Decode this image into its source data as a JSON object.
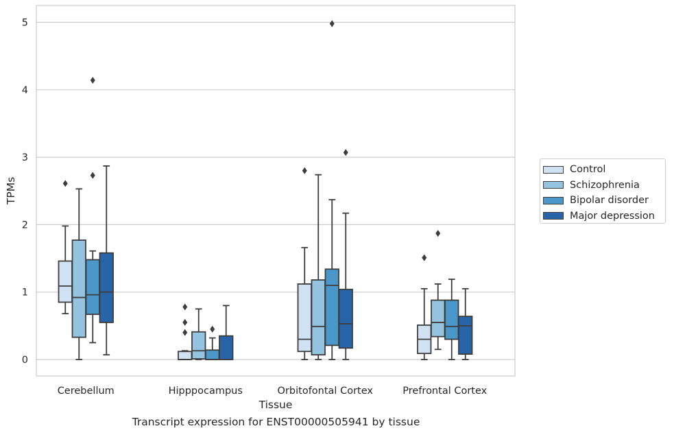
{
  "chart_data": {
    "type": "boxplot",
    "xlabel": "Tissue",
    "ylabel": "TPMs",
    "caption": "Transcript expression for ENST00000505941 by tissue",
    "ylim": [
      -0.25,
      5.23
    ],
    "yticks": [
      0,
      1,
      2,
      3,
      4,
      5
    ],
    "grid": "horizontal",
    "legend_position": "right",
    "categories": [
      "Cerebellum",
      "Hipppocampus",
      "Orbitofontal Cortex",
      "Prefrontal Cortex"
    ],
    "series": [
      {
        "name": "Control",
        "color": "#d0e1f2",
        "boxes": [
          {
            "whislo": 0.68,
            "q1": 0.85,
            "med": 1.09,
            "q3": 1.46,
            "whishi": 1.98,
            "fliers": [
              2.61
            ]
          },
          {
            "whislo": 0.0,
            "q1": 0.0,
            "med": 0.0,
            "q3": 0.12,
            "whishi": 0.13,
            "fliers": [
              0.4,
              0.55,
              0.78
            ]
          },
          {
            "whislo": 0.0,
            "q1": 0.12,
            "med": 0.3,
            "q3": 1.12,
            "whishi": 1.66,
            "fliers": [
              2.8
            ]
          },
          {
            "whislo": 0.0,
            "q1": 0.09,
            "med": 0.3,
            "q3": 0.51,
            "whishi": 1.05,
            "fliers": [
              1.51
            ]
          }
        ]
      },
      {
        "name": "Schizophrenia",
        "color": "#94c4df",
        "boxes": [
          {
            "whislo": 0.0,
            "q1": 0.33,
            "med": 0.92,
            "q3": 1.77,
            "whishi": 2.53,
            "fliers": []
          },
          {
            "whislo": 0.0,
            "q1": 0.01,
            "med": 0.13,
            "q3": 0.41,
            "whishi": 0.75,
            "fliers": []
          },
          {
            "whislo": 0.0,
            "q1": 0.07,
            "med": 0.49,
            "q3": 1.18,
            "whishi": 2.74,
            "fliers": []
          },
          {
            "whislo": 0.15,
            "q1": 0.34,
            "med": 0.55,
            "q3": 0.88,
            "whishi": 1.12,
            "fliers": [
              1.87
            ]
          }
        ]
      },
      {
        "name": "Bipolar disorder",
        "color": "#4a98c9",
        "boxes": [
          {
            "whislo": 0.25,
            "q1": 0.67,
            "med": 0.96,
            "q3": 1.48,
            "whishi": 1.61,
            "fliers": [
              2.73,
              4.14
            ]
          },
          {
            "whislo": 0.0,
            "q1": 0.0,
            "med": 0.0,
            "q3": 0.14,
            "whishi": 0.32,
            "fliers": [
              0.45
            ]
          },
          {
            "whislo": 0.0,
            "q1": 0.21,
            "med": 1.1,
            "q3": 1.34,
            "whishi": 2.37,
            "fliers": [
              4.98
            ]
          },
          {
            "whislo": 0.0,
            "q1": 0.3,
            "med": 0.49,
            "q3": 0.88,
            "whishi": 1.19,
            "fliers": []
          }
        ]
      },
      {
        "name": "Major depression",
        "color": "#2864a8",
        "boxes": [
          {
            "whislo": 0.07,
            "q1": 0.55,
            "med": 1.0,
            "q3": 1.58,
            "whishi": 2.87,
            "fliers": []
          },
          {
            "whislo": 0.0,
            "q1": 0.0,
            "med": 0.0,
            "q3": 0.35,
            "whishi": 0.8,
            "fliers": []
          },
          {
            "whislo": 0.0,
            "q1": 0.17,
            "med": 0.53,
            "q3": 1.04,
            "whishi": 2.17,
            "fliers": [
              3.07
            ]
          },
          {
            "whislo": 0.0,
            "q1": 0.08,
            "med": 0.5,
            "q3": 0.64,
            "whishi": 1.05,
            "fliers": []
          }
        ]
      }
    ]
  }
}
